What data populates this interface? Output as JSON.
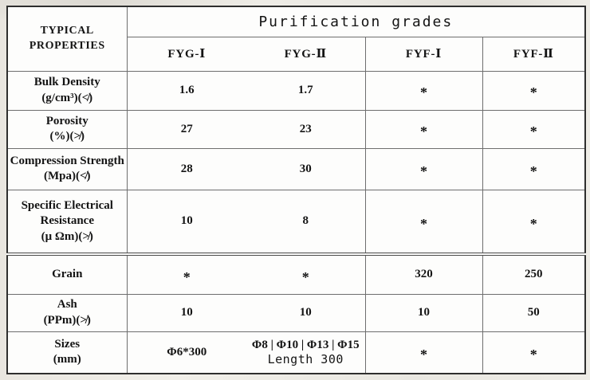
{
  "page": {
    "background_color": "#eceae4",
    "paper_color": "#fdfdfc"
  },
  "table": {
    "corner_header": {
      "line1": "TYPICAL",
      "line2": "PROPERTIES"
    },
    "group_header": "Purification grades",
    "columns": [
      "FYG-Ⅰ",
      "FYG-Ⅱ",
      "FYF-Ⅰ",
      "FYF-Ⅱ"
    ],
    "rows": [
      {
        "property": "Bulk Density\n(g/cm³)(≮)",
        "values": [
          "1.6",
          "1.7",
          "*",
          "*"
        ]
      },
      {
        "property": "Porosity\n(%)(≯)",
        "values": [
          "27",
          "23",
          "*",
          "*"
        ]
      },
      {
        "property": "Compression Strength\n(Mpa)(≮)",
        "values": [
          "28",
          "30",
          "*",
          "*"
        ]
      },
      {
        "property": "Specific Electrical\nResistance\n(μ Ωm)(≯)",
        "values": [
          "10",
          "8",
          "*",
          "*"
        ]
      },
      {
        "property": "Grain",
        "values": [
          "*",
          "*",
          "320",
          "250"
        ]
      },
      {
        "property": "Ash\n(PPm)(≯)",
        "values": [
          "10",
          "10",
          "10",
          "50"
        ]
      },
      {
        "property": "Sizes\n(mm)",
        "values": [
          "Φ6*300",
          "Φ8 | Φ10 | Φ13 | Φ15\nLength 300",
          "*",
          "*"
        ]
      }
    ]
  }
}
